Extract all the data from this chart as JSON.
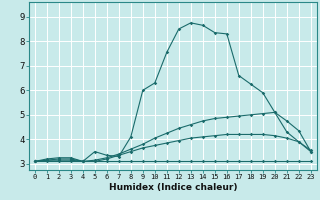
{
  "title": "",
  "xlabel": "Humidex (Indice chaleur)",
  "ylabel": "",
  "background_color": "#c8eaea",
  "grid_color": "#ffffff",
  "line_color": "#1a6b6b",
  "xlim": [
    -0.5,
    23.5
  ],
  "ylim": [
    2.75,
    9.6
  ],
  "xticks": [
    0,
    1,
    2,
    3,
    4,
    5,
    6,
    7,
    8,
    9,
    10,
    11,
    12,
    13,
    14,
    15,
    16,
    17,
    18,
    19,
    20,
    21,
    22,
    23
  ],
  "yticks": [
    3,
    4,
    5,
    6,
    7,
    8,
    9
  ],
  "series": [
    {
      "x": [
        0,
        1,
        2,
        3,
        4,
        5,
        6,
        7,
        8,
        9,
        10,
        11,
        12,
        13,
        14,
        15,
        16,
        17,
        18,
        19,
        20,
        21,
        22,
        23
      ],
      "y": [
        3.1,
        3.2,
        3.25,
        3.25,
        3.1,
        3.5,
        3.35,
        3.3,
        4.1,
        6.0,
        6.3,
        7.55,
        8.5,
        8.75,
        8.65,
        8.35,
        8.3,
        6.6,
        6.25,
        5.9,
        5.1,
        4.3,
        3.9,
        3.5
      ]
    },
    {
      "x": [
        0,
        1,
        2,
        3,
        4,
        5,
        6,
        7,
        8,
        9,
        10,
        11,
        12,
        13,
        14,
        15,
        16,
        17,
        18,
        19,
        20,
        21,
        22,
        23
      ],
      "y": [
        3.1,
        3.15,
        3.2,
        3.2,
        3.1,
        3.15,
        3.25,
        3.4,
        3.6,
        3.8,
        4.05,
        4.25,
        4.45,
        4.6,
        4.75,
        4.85,
        4.9,
        4.95,
        5.0,
        5.05,
        5.1,
        4.75,
        4.35,
        3.5
      ]
    },
    {
      "x": [
        0,
        1,
        2,
        3,
        4,
        5,
        6,
        7,
        8,
        9,
        10,
        11,
        12,
        13,
        14,
        15,
        16,
        17,
        18,
        19,
        20,
        21,
        22,
        23
      ],
      "y": [
        3.1,
        3.15,
        3.15,
        3.15,
        3.1,
        3.1,
        3.2,
        3.35,
        3.5,
        3.65,
        3.75,
        3.85,
        3.95,
        4.05,
        4.1,
        4.15,
        4.2,
        4.2,
        4.2,
        4.2,
        4.15,
        4.05,
        3.9,
        3.55
      ]
    },
    {
      "x": [
        0,
        1,
        2,
        3,
        4,
        5,
        6,
        7,
        8,
        9,
        10,
        11,
        12,
        13,
        14,
        15,
        16,
        17,
        18,
        19,
        20,
        21,
        22,
        23
      ],
      "y": [
        3.1,
        3.1,
        3.1,
        3.1,
        3.1,
        3.1,
        3.1,
        3.1,
        3.1,
        3.1,
        3.1,
        3.1,
        3.1,
        3.1,
        3.1,
        3.1,
        3.1,
        3.1,
        3.1,
        3.1,
        3.1,
        3.1,
        3.1,
        3.1
      ]
    }
  ]
}
